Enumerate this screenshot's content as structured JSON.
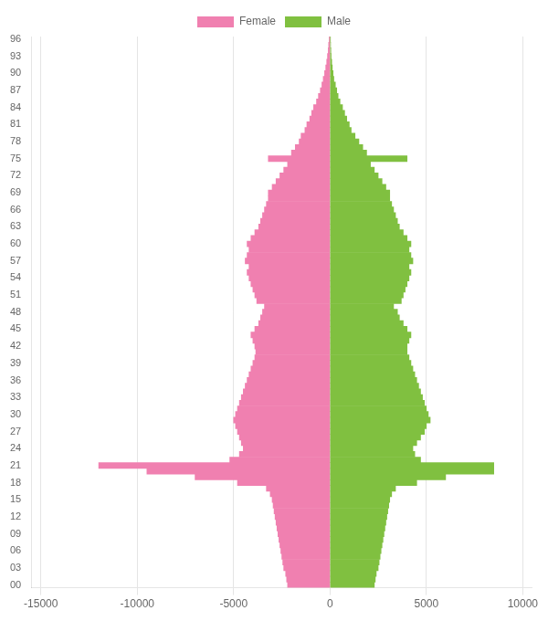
{
  "chart_data": {
    "type": "bar",
    "orientation": "horizontal",
    "categories": [
      "00",
      null,
      null,
      "03",
      null,
      null,
      "06",
      null,
      null,
      "09",
      null,
      null,
      "12",
      null,
      null,
      "15",
      null,
      null,
      "18",
      null,
      null,
      "21",
      null,
      null,
      "24",
      null,
      null,
      "27",
      null,
      null,
      "30",
      null,
      null,
      "33",
      null,
      null,
      "36",
      null,
      null,
      "39",
      null,
      null,
      "42",
      null,
      null,
      "45",
      null,
      null,
      "48",
      null,
      null,
      "51",
      null,
      null,
      "54",
      null,
      null,
      "57",
      null,
      null,
      "60",
      null,
      null,
      "63",
      null,
      null,
      "66",
      null,
      null,
      "69",
      null,
      null,
      "72",
      null,
      null,
      "75",
      null,
      null,
      "78",
      null,
      null,
      "81",
      null,
      null,
      "84",
      null,
      null,
      "87",
      null,
      null,
      "90",
      null,
      null,
      "93",
      null,
      null,
      "96"
    ],
    "series": [
      {
        "name": "Female",
        "color": "#f080b0",
        "values": [
          -2200,
          -2250,
          -2300,
          -2400,
          -2450,
          -2500,
          -2550,
          -2600,
          -2650,
          -2700,
          -2750,
          -2800,
          -2850,
          -2900,
          -2950,
          -3000,
          -3100,
          -3300,
          -4800,
          -7000,
          -9500,
          -12000,
          -5200,
          -4700,
          -4500,
          -4600,
          -4700,
          -4800,
          -4900,
          -5000,
          -4900,
          -4800,
          -4700,
          -4600,
          -4500,
          -4400,
          -4300,
          -4200,
          -4100,
          -4000,
          -3900,
          -3850,
          -3900,
          -4000,
          -4100,
          -3900,
          -3700,
          -3600,
          -3500,
          -3400,
          -3800,
          -3900,
          -4000,
          -4100,
          -4200,
          -4300,
          -4200,
          -4400,
          -4300,
          -4200,
          -4300,
          -4100,
          -3900,
          -3700,
          -3600,
          -3500,
          -3400,
          -3300,
          -3200,
          -3200,
          -3000,
          -2800,
          -2600,
          -2400,
          -2200,
          -3200,
          -2000,
          -1800,
          -1600,
          -1500,
          -1300,
          -1200,
          -1050,
          -950,
          -850,
          -700,
          -600,
          -500,
          -420,
          -350,
          -280,
          -220,
          -170,
          -130,
          -90,
          -70,
          -40
        ]
      },
      {
        "name": "Male",
        "color": "#80c040",
        "values": [
          2300,
          2350,
          2400,
          2500,
          2550,
          2600,
          2650,
          2700,
          2750,
          2800,
          2850,
          2900,
          2950,
          3000,
          3050,
          3100,
          3200,
          3400,
          4500,
          6000,
          8500,
          8500,
          4700,
          4400,
          4300,
          4500,
          4700,
          4900,
          5000,
          5200,
          5100,
          5000,
          4900,
          4800,
          4700,
          4600,
          4500,
          4400,
          4300,
          4200,
          4100,
          4000,
          4000,
          4100,
          4200,
          4000,
          3800,
          3600,
          3500,
          3300,
          3700,
          3800,
          3900,
          4000,
          4100,
          4200,
          4100,
          4300,
          4200,
          4100,
          4200,
          4000,
          3800,
          3600,
          3500,
          3400,
          3300,
          3200,
          3100,
          3100,
          2900,
          2700,
          2500,
          2300,
          2100,
          4000,
          1900,
          1700,
          1500,
          1300,
          1100,
          1000,
          870,
          760,
          650,
          520,
          420,
          350,
          280,
          200,
          160,
          120,
          90,
          60,
          45,
          30,
          15
        ]
      }
    ],
    "xlim": [
      -15500,
      10500
    ],
    "xticks": [
      -15000,
      -10000,
      -5000,
      0,
      5000,
      10000
    ],
    "grid": true,
    "legend": "top"
  }
}
